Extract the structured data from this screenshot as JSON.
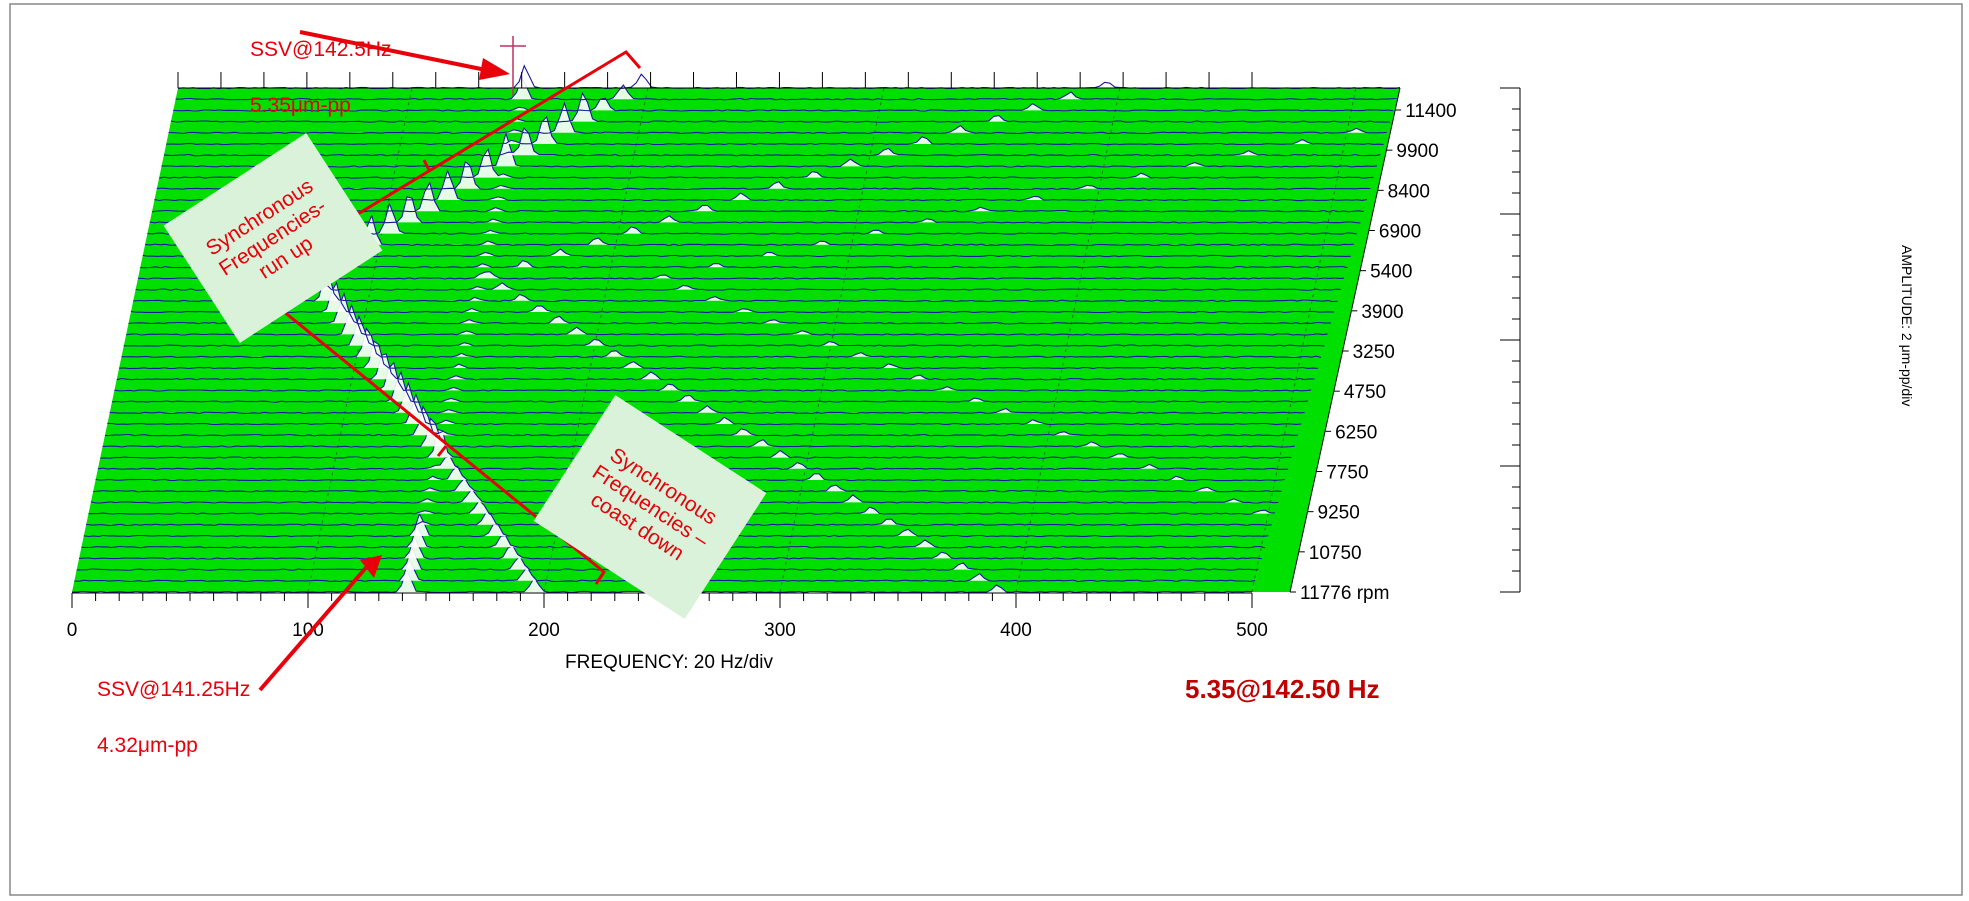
{
  "chart_data": {
    "type": "waterfall",
    "xlabel": "FREQUENCY: 20 Hz/div",
    "ylabel": "AMPLITUDE: 2 μm-pp/div",
    "xlim": [
      0,
      500
    ],
    "x_ticks": [
      0,
      100,
      200,
      300,
      400,
      500
    ],
    "rpm_labels": [
      "11400",
      "9900",
      "8400",
      "6900",
      "5400",
      "3900",
      "3250",
      "4750",
      "6250",
      "7750",
      "9250",
      "10750",
      "11776 rpm"
    ],
    "background_color": "#00e000",
    "trace_color": "#1a1a9a",
    "peak_fill_color": "#ffffff",
    "readout": "5.35@142.50 Hz",
    "peaks": [
      {
        "label": "SSV@142.5Hz",
        "amplitude": "5.35μm-pp",
        "frequency": 142.5
      },
      {
        "label": "SSV@141.25Hz",
        "amplitude": "4.32μm-pp",
        "frequency": 141.25
      }
    ],
    "annotations": {
      "run_up": "Synchronous Frequencies-run up",
      "coast_down": "Synchronous Frequencies – coast down"
    }
  },
  "labels": {
    "ssv_top_1": "SSV@142.5Hz",
    "ssv_top_2": "5.35μm-pp",
    "ssv_bottom_1": "SSV@141.25Hz",
    "ssv_bottom_2": "4.32μm-pp",
    "run_up_1": "Synchronous",
    "run_up_2": "Frequencies-",
    "run_up_3": "run up",
    "coast_1": "Synchronous",
    "coast_2": "Frequencies –",
    "coast_3": "coast down"
  }
}
